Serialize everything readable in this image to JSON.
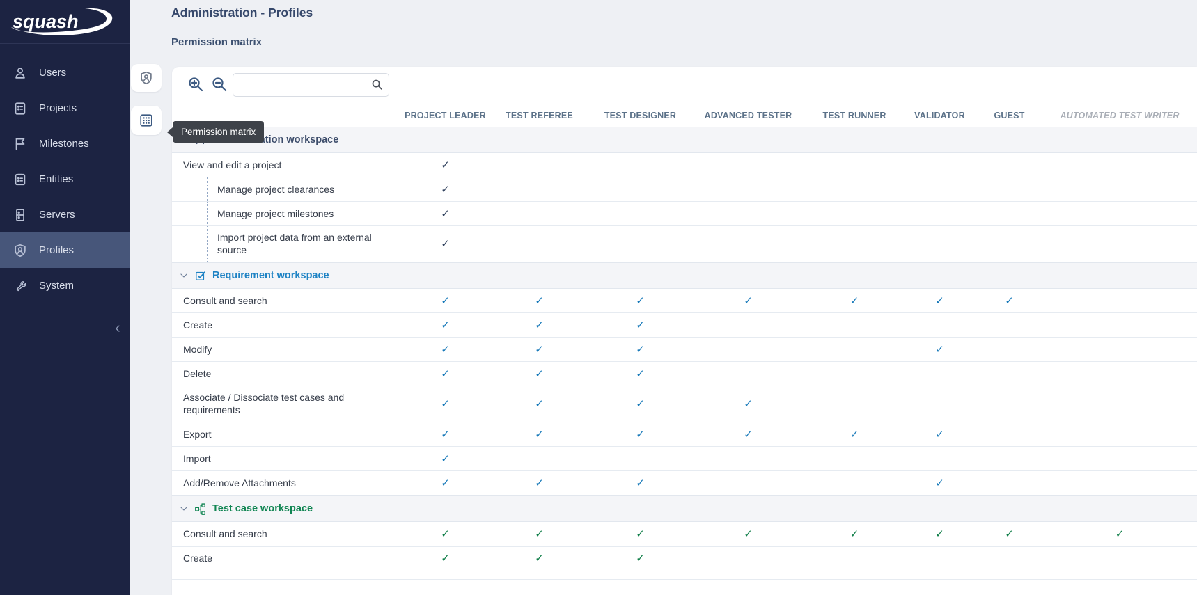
{
  "app": {
    "logo_text": "squash"
  },
  "sidebar": {
    "items": [
      {
        "label": "Users",
        "icon": "user-icon",
        "active": false
      },
      {
        "label": "Projects",
        "icon": "document-icon",
        "active": false
      },
      {
        "label": "Milestones",
        "icon": "flag-icon",
        "active": false
      },
      {
        "label": "Entities",
        "icon": "clipboard-icon",
        "active": false
      },
      {
        "label": "Servers",
        "icon": "server-icon",
        "active": false
      },
      {
        "label": "Profiles",
        "icon": "shield-user-icon",
        "active": true
      },
      {
        "label": "System",
        "icon": "wrench-icon",
        "active": false
      }
    ]
  },
  "rail": {
    "buttons": [
      {
        "name": "profiles-detail",
        "icon": "shield-user-icon"
      },
      {
        "name": "permission-matrix",
        "icon": "grid-icon"
      }
    ],
    "tooltip": "Permission matrix"
  },
  "header": {
    "title": "Administration - Profiles",
    "subtitle": "Permission matrix"
  },
  "toolbar": {
    "search_value": ""
  },
  "matrix": {
    "columns": [
      {
        "label": "PROJECT LEADER",
        "italic": false
      },
      {
        "label": "TEST REFEREE",
        "italic": false
      },
      {
        "label": "TEST DESIGNER",
        "italic": false
      },
      {
        "label": "ADVANCED TESTER",
        "italic": false
      },
      {
        "label": "TEST RUNNER",
        "italic": false
      },
      {
        "label": "VALIDATOR",
        "italic": false
      },
      {
        "label": "GUEST",
        "italic": false
      },
      {
        "label": "AUTOMATED TEST WRITER",
        "italic": true
      }
    ],
    "sections": [
      {
        "label": "Administration workspace",
        "icon": "tools-icon",
        "color": "#3d4d6b",
        "check_color": "#32435f",
        "rows": [
          {
            "label": "View and edit a project",
            "indent": false,
            "checks": [
              1,
              0,
              0,
              0,
              0,
              0,
              0,
              0
            ]
          },
          {
            "label": "Manage project clearances",
            "indent": true,
            "checks": [
              1,
              0,
              0,
              0,
              0,
              0,
              0,
              0
            ]
          },
          {
            "label": "Manage project milestones",
            "indent": true,
            "checks": [
              1,
              0,
              0,
              0,
              0,
              0,
              0,
              0
            ]
          },
          {
            "label": "Import project data from an external source",
            "indent": true,
            "checks": [
              1,
              0,
              0,
              0,
              0,
              0,
              0,
              0
            ]
          }
        ]
      },
      {
        "label": "Requirement workspace",
        "icon": "requirement-icon",
        "color": "#1d82c4",
        "check_color": "#1779b9",
        "rows": [
          {
            "label": "Consult and search",
            "indent": false,
            "checks": [
              1,
              1,
              1,
              1,
              1,
              1,
              1,
              0
            ]
          },
          {
            "label": "Create",
            "indent": false,
            "checks": [
              1,
              1,
              1,
              0,
              0,
              0,
              0,
              0
            ]
          },
          {
            "label": "Modify",
            "indent": false,
            "checks": [
              1,
              1,
              1,
              0,
              0,
              1,
              0,
              0
            ]
          },
          {
            "label": "Delete",
            "indent": false,
            "checks": [
              1,
              1,
              1,
              0,
              0,
              0,
              0,
              0
            ]
          },
          {
            "label": "Associate / Dissociate test cases and requirements",
            "indent": false,
            "checks": [
              1,
              1,
              1,
              1,
              0,
              0,
              0,
              0
            ]
          },
          {
            "label": "Export",
            "indent": false,
            "checks": [
              1,
              1,
              1,
              1,
              1,
              1,
              0,
              0
            ]
          },
          {
            "label": "Import",
            "indent": false,
            "checks": [
              1,
              0,
              0,
              0,
              0,
              0,
              0,
              0
            ]
          },
          {
            "label": "Add/Remove Attachments",
            "indent": false,
            "checks": [
              1,
              1,
              1,
              0,
              0,
              1,
              0,
              0
            ]
          }
        ]
      },
      {
        "label": "Test case workspace",
        "icon": "testcase-icon",
        "color": "#108552",
        "check_color": "#0f7e48",
        "rows": [
          {
            "label": "Consult and search",
            "indent": false,
            "checks": [
              1,
              1,
              1,
              1,
              1,
              1,
              1,
              1
            ]
          },
          {
            "label": "Create",
            "indent": false,
            "checks": [
              1,
              1,
              1,
              0,
              0,
              0,
              0,
              0
            ]
          }
        ]
      }
    ],
    "check_glyph": "✓"
  }
}
